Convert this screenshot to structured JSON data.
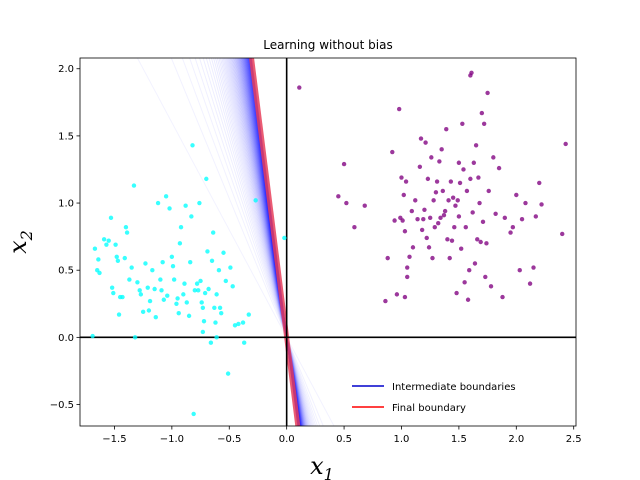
{
  "chart_data": {
    "type": "scatter",
    "title": "Learning without bias",
    "xlabel": "x",
    "xlabel_sub": "1",
    "ylabel": "x",
    "ylabel_sub": "2",
    "xlim": [
      -1.8,
      2.52
    ],
    "ylim": [
      -0.66,
      2.08
    ],
    "xticks": [
      -1.5,
      -1.0,
      -0.5,
      0.0,
      0.5,
      1.0,
      1.5,
      2.0,
      2.5
    ],
    "xtick_labels": [
      "−1.5",
      "−1.0",
      "−0.5",
      "0.0",
      "0.5",
      "1.0",
      "1.5",
      "2.0",
      "2.5"
    ],
    "yticks": [
      -0.5,
      0.0,
      0.5,
      1.0,
      1.5,
      2.0
    ],
    "ytick_labels": [
      "−0.5",
      "0.0",
      "0.5",
      "1.0",
      "1.5",
      "2.0"
    ],
    "grid": false,
    "legend_position": "lower-right",
    "legend": [
      {
        "label": "Intermediate boundaries",
        "color": "#0000cc"
      },
      {
        "label": "Final boundary",
        "color": "#ff0000"
      }
    ],
    "boundary_slopes": {
      "final": -6.8,
      "intermediate_start": -1.6,
      "count": 80
    },
    "series": [
      {
        "color": "#00ffff",
        "points": [
          [
            -1.69,
            0.01
          ],
          [
            -1.67,
            0.66
          ],
          [
            -1.65,
            0.5
          ],
          [
            -1.64,
            0.58
          ],
          [
            -1.63,
            0.48
          ],
          [
            -1.59,
            0.73
          ],
          [
            -1.57,
            0.69
          ],
          [
            -1.55,
            0.72
          ],
          [
            -1.53,
            0.89
          ],
          [
            -1.52,
            0.37
          ],
          [
            -1.51,
            0.33
          ],
          [
            -1.49,
            0.69
          ],
          [
            -1.48,
            0.6
          ],
          [
            -1.47,
            0.57
          ],
          [
            -1.46,
            0.17
          ],
          [
            -1.45,
            0.3
          ],
          [
            -1.43,
            0.3
          ],
          [
            -1.41,
            0.59
          ],
          [
            -1.4,
            0.82
          ],
          [
            -1.39,
            0.78
          ],
          [
            -1.37,
            0.43
          ],
          [
            -1.35,
            0.52
          ],
          [
            -1.33,
            1.13
          ],
          [
            -1.32,
            0.0
          ],
          [
            -1.3,
            0.41
          ],
          [
            -1.28,
            0.35
          ],
          [
            -1.27,
            0.32
          ],
          [
            -1.25,
            0.19
          ],
          [
            -1.23,
            0.55
          ],
          [
            -1.21,
            0.37
          ],
          [
            -1.19,
            0.27
          ],
          [
            -1.17,
            0.5
          ],
          [
            -1.15,
            0.36
          ],
          [
            -1.14,
            0.15
          ],
          [
            -1.12,
            1.0
          ],
          [
            -1.1,
            0.43
          ],
          [
            -1.09,
            0.35
          ],
          [
            -1.08,
            0.56
          ],
          [
            -1.07,
            0.28
          ],
          [
            -1.05,
            1.05
          ],
          [
            -1.04,
            0.31
          ],
          [
            -1.02,
            0.96
          ],
          [
            -1.0,
            0.6
          ],
          [
            -0.99,
            0.53
          ],
          [
            -0.98,
            0.43
          ],
          [
            -0.96,
            0.25
          ],
          [
            -0.95,
            0.29
          ],
          [
            -0.94,
            0.18
          ],
          [
            -0.92,
            0.82
          ],
          [
            -0.9,
            0.32
          ],
          [
            -0.89,
            0.4
          ],
          [
            -0.87,
            0.26
          ],
          [
            -0.85,
            0.16
          ],
          [
            -0.84,
            0.56
          ],
          [
            -0.83,
            0.9
          ],
          [
            -0.82,
            1.43
          ],
          [
            -0.81,
            -0.57
          ],
          [
            -0.8,
            0.35
          ],
          [
            -0.78,
            0.4
          ],
          [
            -0.77,
            0.35
          ],
          [
            -0.76,
            1.0
          ],
          [
            -0.75,
            0.42
          ],
          [
            -0.74,
            0.26
          ],
          [
            -0.73,
            0.04
          ],
          [
            -0.72,
            0.12
          ],
          [
            -0.71,
            0.33
          ],
          [
            -0.7,
            1.18
          ],
          [
            -0.69,
            0.64
          ],
          [
            -0.68,
            0.36
          ],
          [
            -0.66,
            -0.04
          ],
          [
            -0.65,
            0.57
          ],
          [
            -0.64,
            0.78
          ],
          [
            -0.63,
            0.22
          ],
          [
            -0.62,
            0.11
          ],
          [
            -0.61,
            0.32
          ],
          [
            -0.59,
            0.5
          ],
          [
            -0.58,
            0.22
          ],
          [
            -0.57,
            0.18
          ],
          [
            -0.55,
            0.63
          ],
          [
            -0.53,
            0.42
          ],
          [
            -0.51,
            -0.27
          ],
          [
            -0.49,
            0.52
          ],
          [
            -0.47,
            0.38
          ],
          [
            -0.45,
            0.09
          ],
          [
            -0.42,
            0.1
          ],
          [
            -0.38,
            0.11
          ],
          [
            -0.33,
            0.17
          ],
          [
            -0.37,
            -0.04
          ],
          [
            -0.73,
            0.22
          ],
          [
            -0.61,
            0.0
          ],
          [
            -0.02,
            0.74
          ],
          [
            -0.27,
            1.02
          ],
          [
            -0.88,
            0.98
          ],
          [
            -1.2,
            0.2
          ],
          [
            -0.93,
            0.7
          ]
        ]
      },
      {
        "color": "#800080",
        "points": [
          [
            0.11,
            1.86
          ],
          [
            0.45,
            1.05
          ],
          [
            0.5,
            1.29
          ],
          [
            0.52,
            1.0
          ],
          [
            0.59,
            0.82
          ],
          [
            0.68,
            0.98
          ],
          [
            0.86,
            0.27
          ],
          [
            0.88,
            0.59
          ],
          [
            0.92,
            1.38
          ],
          [
            0.94,
            0.87
          ],
          [
            0.96,
            0.32
          ],
          [
            0.98,
            1.7
          ],
          [
            0.99,
            0.89
          ],
          [
            1.0,
            1.19
          ],
          [
            1.01,
            0.87
          ],
          [
            1.02,
            1.06
          ],
          [
            1.03,
            0.79
          ],
          [
            1.03,
            0.3
          ],
          [
            1.04,
            1.16
          ],
          [
            1.05,
            0.45
          ],
          [
            1.07,
            0.6
          ],
          [
            1.09,
            0.94
          ],
          [
            1.1,
            0.67
          ],
          [
            1.12,
            1.02
          ],
          [
            1.14,
            0.88
          ],
          [
            1.16,
            1.27
          ],
          [
            1.17,
            1.48
          ],
          [
            1.18,
            0.8
          ],
          [
            1.19,
            0.88
          ],
          [
            1.2,
            0.95
          ],
          [
            1.21,
            1.45
          ],
          [
            1.22,
            0.74
          ],
          [
            1.23,
            1.18
          ],
          [
            1.24,
            0.67
          ],
          [
            1.25,
            0.89
          ],
          [
            1.26,
            1.34
          ],
          [
            1.27,
            0.59
          ],
          [
            1.28,
            1.02
          ],
          [
            1.29,
            0.82
          ],
          [
            1.3,
            1.08
          ],
          [
            1.31,
            1.16
          ],
          [
            1.32,
            0.85
          ],
          [
            1.33,
            1.31
          ],
          [
            1.34,
            0.89
          ],
          [
            1.35,
            1.4
          ],
          [
            1.36,
            1.09
          ],
          [
            1.37,
            0.91
          ],
          [
            1.38,
            0.94
          ],
          [
            1.39,
            1.55
          ],
          [
            1.4,
            0.73
          ],
          [
            1.41,
            1.02
          ],
          [
            1.42,
            0.59
          ],
          [
            1.43,
            1.16
          ],
          [
            1.44,
            0.72
          ],
          [
            1.45,
            1.04
          ],
          [
            1.46,
            0.82
          ],
          [
            1.47,
            0.98
          ],
          [
            1.48,
            0.33
          ],
          [
            1.49,
            1.02
          ],
          [
            1.5,
            0.9
          ],
          [
            1.51,
            1.15
          ],
          [
            1.52,
            0.66
          ],
          [
            1.53,
            1.59
          ],
          [
            1.54,
            1.25
          ],
          [
            1.55,
            0.41
          ],
          [
            1.56,
            0.82
          ],
          [
            1.57,
            1.09
          ],
          [
            1.58,
            0.28
          ],
          [
            1.59,
            0.5
          ],
          [
            1.6,
            1.18
          ],
          [
            1.61,
            1.97
          ],
          [
            1.62,
            0.93
          ],
          [
            1.63,
            1.3
          ],
          [
            1.64,
            0.55
          ],
          [
            1.65,
            1.43
          ],
          [
            1.66,
            0.73
          ],
          [
            1.67,
            1.19
          ],
          [
            1.68,
            1.0
          ],
          [
            1.69,
            0.71
          ],
          [
            1.7,
            1.67
          ],
          [
            1.71,
            0.86
          ],
          [
            1.72,
            1.59
          ],
          [
            1.73,
            0.45
          ],
          [
            1.74,
            0.7
          ],
          [
            1.75,
            1.82
          ],
          [
            1.76,
            1.09
          ],
          [
            1.78,
            0.38
          ],
          [
            1.8,
            1.34
          ],
          [
            1.82,
            0.92
          ],
          [
            1.85,
            1.26
          ],
          [
            1.88,
            0.3
          ],
          [
            1.9,
            0.89
          ],
          [
            1.95,
            0.78
          ],
          [
            1.97,
            0.82
          ],
          [
            2.0,
            1.06
          ],
          [
            2.03,
            0.5
          ],
          [
            2.05,
            0.88
          ],
          [
            2.08,
            1.0
          ],
          [
            2.12,
            0.4
          ],
          [
            2.15,
            0.52
          ],
          [
            2.17,
            0.9
          ],
          [
            2.2,
            1.15
          ],
          [
            2.22,
            0.99
          ],
          [
            2.4,
            0.77
          ],
          [
            2.43,
            1.44
          ],
          [
            1.6,
            1.95
          ],
          [
            1.05,
            0.52
          ],
          [
            1.5,
            1.3
          ]
        ]
      }
    ]
  }
}
